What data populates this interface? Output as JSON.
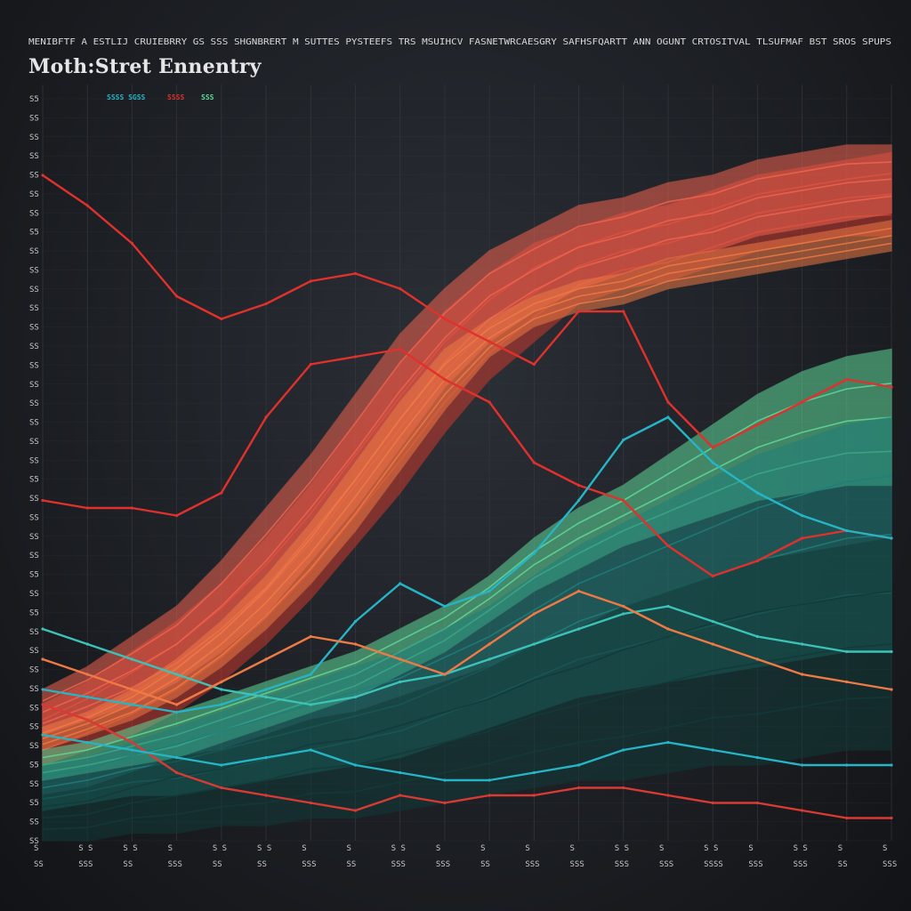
{
  "title": "Moth:Stret Ennentry",
  "header_text": "MENIBFTF A ESTLIJ CRUIEBRRY GS SSS SHGNBRERT M SUTTES PYSTEEFS TRS MSUIHCV FASNETWRCAESGRY SAFHSFQARTT ANN OGUNT CRTOSITVAL TLSUFMAF BST SROS SPUPS",
  "legend": [
    "SSSS SGSS",
    "SSSS",
    "SSS"
  ],
  "colors": {
    "background": "#1d2025",
    "grid": "#3a3d43",
    "red": "#e0312c",
    "coral": "#f0634f",
    "orange": "#ef7a45",
    "teal": "#26b5c6",
    "green": "#5fd99a",
    "dark_teal": "#1d4a48"
  },
  "chart_data": {
    "type": "area",
    "title": "Moth:Stret Ennentry",
    "grid": true,
    "y_tick_labels": [
      "S5",
      "SS",
      "SS",
      "SS",
      "SS",
      "SS",
      "SS",
      "S5",
      "SS",
      "SS",
      "SS",
      "SS",
      "SS",
      "SS",
      "SS",
      "SS",
      "SS",
      "SS",
      "SS",
      "SS",
      "S5",
      "SS",
      "SS",
      "SS",
      "SS",
      "S5",
      "SS",
      "S5",
      "SS",
      "SS",
      "SS",
      "SS",
      "SS",
      "SS",
      "SS",
      "S5",
      "SS",
      "S5",
      "SS",
      "SS"
    ],
    "x_tick_labels": [
      "SS",
      "SSS",
      "SS",
      "SSS",
      "SS",
      "SS",
      "SSS",
      "SS",
      "SSS",
      "SSS",
      "SS",
      "SSS",
      "SSS",
      "SSS",
      "SSS",
      "SSSS",
      "SSS",
      "SSS",
      "SS",
      "SSS"
    ],
    "x_tick_labels_top": [
      "S",
      "S S",
      "S S",
      "S",
      "S S",
      "S S",
      "S",
      "S",
      "S S",
      "S",
      "S",
      "S",
      "S",
      "S S",
      "S",
      "S S",
      "S",
      "S S",
      "S",
      "S"
    ],
    "x": [
      0,
      1,
      2,
      3,
      4,
      5,
      6,
      7,
      8,
      9,
      10,
      11,
      12,
      13,
      14,
      15,
      16,
      17,
      18,
      19
    ],
    "ylim": [
      0,
      100
    ],
    "bands": [
      {
        "color": "#c93a2e",
        "lower": [
          10,
          12,
          14,
          17,
          21,
          26,
          32,
          39,
          46,
          54,
          61,
          66,
          71,
          73,
          74,
          76,
          78,
          79,
          80,
          80
        ],
        "upper": [
          18,
          21,
          25,
          29,
          34,
          40,
          47,
          55,
          63,
          70,
          75,
          79,
          81,
          83,
          84,
          86,
          88,
          89,
          90,
          91
        ]
      },
      {
        "color": "#f0634f",
        "lower": [
          14,
          16,
          18,
          21,
          25,
          30,
          37,
          44,
          52,
          60,
          66,
          70,
          73,
          75,
          77,
          78,
          80,
          81,
          82,
          83
        ],
        "upper": [
          20,
          23,
          27,
          31,
          37,
          44,
          51,
          59,
          67,
          73,
          78,
          81,
          84,
          85,
          87,
          88,
          90,
          91,
          92,
          92
        ]
      },
      {
        "color": "#ef7a45",
        "lower": [
          12,
          14,
          16,
          19,
          23,
          28,
          34,
          41,
          49,
          57,
          64,
          68,
          70,
          71,
          73,
          74,
          75,
          76,
          77,
          78
        ],
        "upper": [
          15,
          17,
          20,
          24,
          29,
          35,
          42,
          50,
          58,
          65,
          69,
          72,
          74,
          75,
          77,
          78,
          79,
          80,
          81,
          82
        ]
      },
      {
        "color": "#5fd99a",
        "lower": [
          8,
          9,
          10,
          11,
          13,
          15,
          17,
          19,
          22,
          25,
          29,
          33,
          36,
          39,
          41,
          43,
          45,
          46,
          47,
          47
        ],
        "upper": [
          12,
          13,
          15,
          17,
          19,
          21,
          23,
          25,
          28,
          31,
          35,
          40,
          44,
          47,
          51,
          55,
          59,
          62,
          64,
          65
        ]
      },
      {
        "color": "#1f7f7a",
        "lower": [
          4,
          5,
          6,
          6,
          7,
          8,
          9,
          10,
          11,
          13,
          15,
          17,
          19,
          20,
          21,
          22,
          23,
          24,
          25,
          25
        ],
        "upper": [
          10,
          11,
          13,
          15,
          17,
          19,
          21,
          23,
          25,
          28,
          31,
          35,
          39,
          42,
          45,
          48,
          51,
          53,
          55,
          56
        ]
      },
      {
        "color": "#123a38",
        "lower": [
          0,
          0,
          1,
          1,
          2,
          2,
          3,
          3,
          4,
          5,
          6,
          7,
          8,
          8,
          9,
          10,
          10,
          11,
          12,
          12
        ],
        "upper": [
          6,
          7,
          9,
          11,
          12,
          14,
          16,
          17,
          19,
          21,
          23,
          26,
          28,
          31,
          33,
          35,
          37,
          38,
          39,
          40
        ]
      }
    ],
    "series": [
      {
        "color": "#e0312c",
        "values": [
          88,
          84,
          79,
          72,
          69,
          71,
          74,
          75,
          73,
          69,
          66,
          63,
          70,
          70,
          58,
          52,
          55,
          58,
          61,
          60
        ]
      },
      {
        "color": "#e0312c",
        "values": [
          45,
          44,
          44,
          43,
          46,
          56,
          63,
          64,
          65,
          61,
          58,
          50,
          47,
          45,
          39,
          35,
          37,
          40,
          41,
          40
        ]
      },
      {
        "color": "#d93a34",
        "values": [
          18,
          16,
          13,
          9,
          7,
          6,
          5,
          4,
          6,
          5,
          6,
          6,
          7,
          7,
          6,
          5,
          5,
          4,
          3,
          3
        ]
      },
      {
        "color": "#26b5c6",
        "values": [
          14,
          13,
          12,
          11,
          10,
          11,
          12,
          10,
          9,
          8,
          8,
          9,
          10,
          12,
          13,
          12,
          11,
          10,
          10,
          10
        ]
      },
      {
        "color": "#26b5c6",
        "values": [
          20,
          19,
          18,
          17,
          18,
          20,
          22,
          29,
          34,
          31,
          33,
          38,
          45,
          53,
          56,
          50,
          46,
          43,
          41,
          40
        ]
      },
      {
        "color": "#3cc2b9",
        "values": [
          28,
          26,
          24,
          22,
          20,
          19,
          18,
          19,
          21,
          22,
          24,
          26,
          28,
          30,
          31,
          29,
          27,
          26,
          25,
          25
        ]
      },
      {
        "color": "#ef7a45",
        "values": [
          24,
          22,
          20,
          18,
          21,
          24,
          27,
          26,
          24,
          22,
          26,
          30,
          33,
          31,
          28,
          26,
          24,
          22,
          21,
          20
        ]
      }
    ]
  }
}
